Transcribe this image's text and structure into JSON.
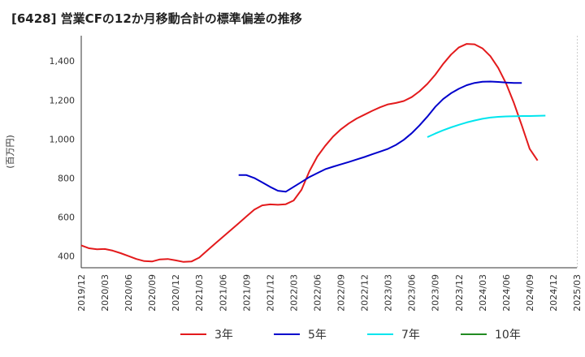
{
  "chart_data": {
    "type": "line",
    "title": "[6428]  営業CFの12か月移動合計の標準偏差の推移",
    "ylabel": "(百万円)",
    "xlabel": "",
    "ylim": [
      340,
      1530
    ],
    "yticks": [
      400,
      600,
      800,
      1000,
      1200,
      1400
    ],
    "ytick_labels": [
      "400",
      "600",
      "800",
      "1,000",
      "1,200",
      "1,400"
    ],
    "x_tick_labels": [
      "2019/12",
      "2020/03",
      "2020/06",
      "2020/09",
      "2020/12",
      "2021/03",
      "2021/06",
      "2021/09",
      "2021/12",
      "2022/03",
      "2022/06",
      "2022/09",
      "2022/12",
      "2023/03",
      "2023/06",
      "2023/09",
      "2023/12",
      "2024/03",
      "2024/06",
      "2024/09",
      "2024/12",
      "2025/03"
    ],
    "grid": true,
    "legend_position": "bottom",
    "series": [
      {
        "name": "3年",
        "color": "#e31a1c",
        "start": "2019/12",
        "values": [
          455,
          440,
          435,
          436,
          428,
          415,
          400,
          385,
          374,
          372,
          383,
          385,
          378,
          370,
          372,
          392,
          428,
          463,
          498,
          533,
          568,
          603,
          638,
          660,
          665,
          663,
          666,
          685,
          740,
          835,
          910,
          965,
          1012,
          1050,
          1080,
          1105,
          1125,
          1145,
          1163,
          1178,
          1185,
          1195,
          1215,
          1245,
          1283,
          1330,
          1385,
          1433,
          1470,
          1488,
          1486,
          1465,
          1425,
          1365,
          1285,
          1185,
          1070,
          950,
          890
        ]
      },
      {
        "name": "5年",
        "color": "#0000cc",
        "start": "2021/08",
        "values": [
          815,
          815,
          800,
          778,
          755,
          735,
          730,
          755,
          780,
          805,
          825,
          845,
          858,
          870,
          882,
          895,
          908,
          922,
          936,
          950,
          970,
          996,
          1030,
          1070,
          1115,
          1165,
          1205,
          1235,
          1258,
          1276,
          1288,
          1294,
          1295,
          1293,
          1290,
          1288,
          1288
        ]
      },
      {
        "name": "7年",
        "color": "#00e5ee",
        "start": "2023/08",
        "values": [
          1010,
          1028,
          1045,
          1060,
          1073,
          1085,
          1095,
          1104,
          1110,
          1114,
          1116,
          1117,
          1118,
          1118,
          1119,
          1120
        ]
      },
      {
        "name": "10年",
        "color": "#228b22",
        "start": "",
        "values": []
      }
    ]
  }
}
